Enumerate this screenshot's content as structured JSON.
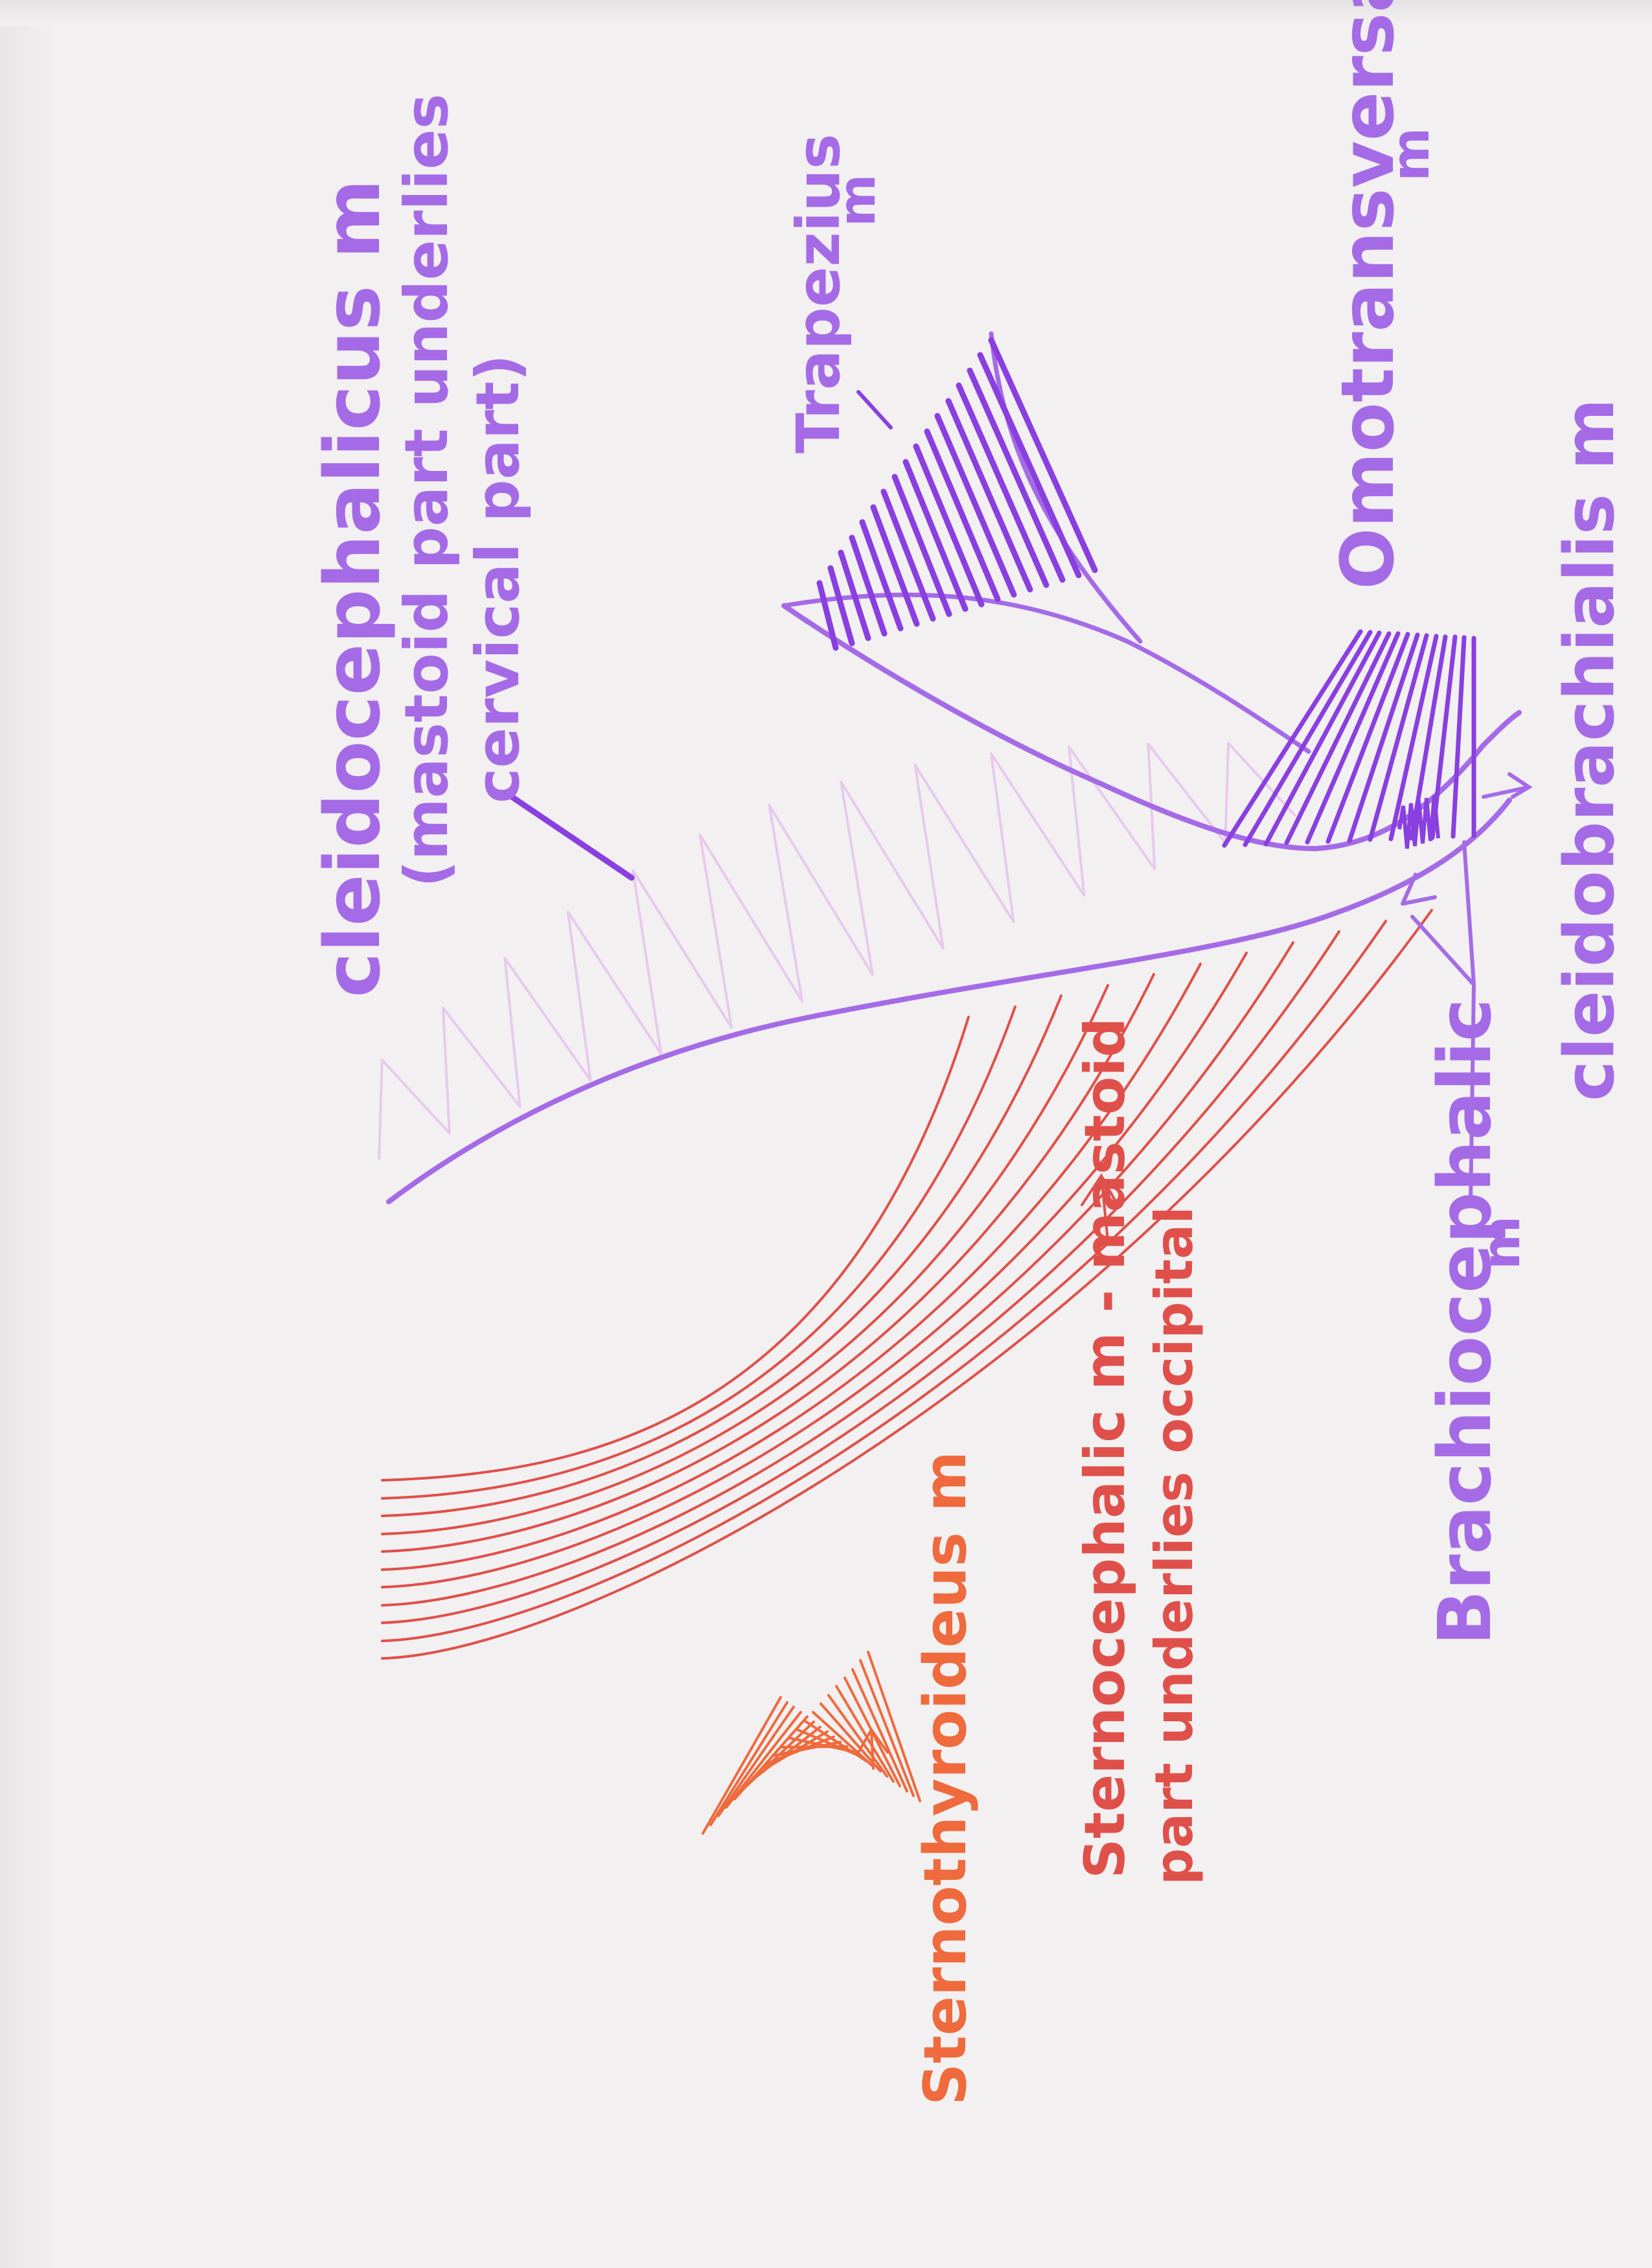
{
  "colors": {
    "paper": "#f2f0f1",
    "purple": "#a56be6",
    "purple_dark": "#8a3fe0",
    "purple_light": "#e8c9ee",
    "red": "#e0504a",
    "orange": "#ef6a3c"
  },
  "labels": {
    "cleidocephalicus_line1": "cleidocephalicus m",
    "cleidocephalicus_line2": "(mastoid part underlies",
    "cleidocephalicus_line3": "cervical part)",
    "trapezius_line1": "Trapezius",
    "trapezius_line2": "m",
    "omotransversarius_line1": "Omotransversarius",
    "omotransversarius_line2": "m",
    "cleidobrachialis": "cleidobrachialis m",
    "brachiocephalic_line1": "Brachiocephalic",
    "brachiocephalic_line2": "m",
    "sternocephalic_line1": "Sternocephalic m - mastoid",
    "sternocephalic_line2": "part underlies occipital",
    "sternothyroideus": "Sternothyroideus m"
  }
}
